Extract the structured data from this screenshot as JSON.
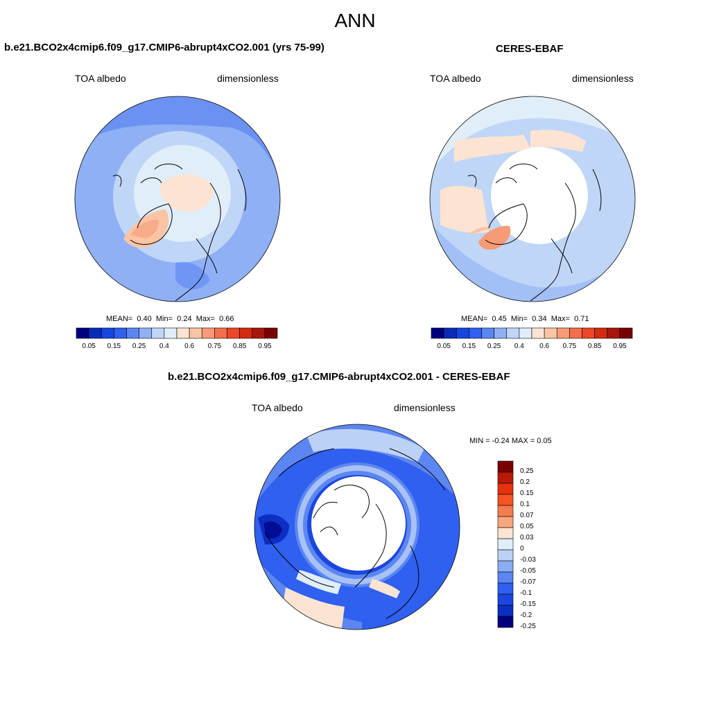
{
  "figure": {
    "title": "ANN"
  },
  "panels": [
    {
      "title": "b.e21.BCO2x4cmip6.f09_g17.CMIP6-abrupt4xCO2.001 (yrs 75-99)",
      "variable": "TOA albedo",
      "units": "dimensionless",
      "mean_label": "MEAN=",
      "mean": "0.40",
      "min_label": "Min=",
      "min": "0.24",
      "max_label": "Max=",
      "max": "0.66",
      "colorbar_ticks": [
        "0.05",
        "0.15",
        "0.25",
        "0.4",
        "0.6",
        "0.75",
        "0.85",
        "0.95"
      ]
    },
    {
      "title": "CERES-EBAF",
      "variable": "TOA albedo",
      "units": "dimensionless",
      "mean_label": "MEAN=",
      "mean": "0.45",
      "min_label": "Min=",
      "min": "0.34",
      "max_label": "Max=",
      "max": "0.71",
      "colorbar_ticks": [
        "0.05",
        "0.15",
        "0.25",
        "0.4",
        "0.6",
        "0.75",
        "0.85",
        "0.95"
      ]
    },
    {
      "title": "b.e21.BCO2x4cmip6.f09_g17.CMIP6-abrupt4xCO2.001 - CERES-EBAF",
      "variable": "TOA albedo",
      "units": "dimensionless",
      "minmax_text": "MIN =  -0.24 MAX =   0.05",
      "colorbar_ticks": [
        "0.25",
        "0.2",
        "0.15",
        "0.1",
        "0.07",
        "0.05",
        "0.03",
        "0",
        "-0.03",
        "-0.05",
        "-0.07",
        "-0.1",
        "-0.15",
        "-0.2",
        "-0.25"
      ]
    }
  ],
  "colors": {
    "absolute_scale": [
      "#00007f",
      "#0a2bb8",
      "#1546e0",
      "#2f60f0",
      "#5b86f2",
      "#8fb0f5",
      "#c0d6f7",
      "#e0eefa",
      "#fde4d2",
      "#fbc4a4",
      "#f79b76",
      "#f36e4c",
      "#ee4626",
      "#d22b10",
      "#a8150a",
      "#7a0000"
    ],
    "difference_scale": [
      "#7a0000",
      "#b81a05",
      "#e6320c",
      "#f55522",
      "#f67d4c",
      "#f9a57e",
      "#fde4d2",
      "#e0eefa",
      "#bcd1f6",
      "#8aadf3",
      "#5c86f1",
      "#2f60ef",
      "#1b47e0",
      "#0c2ec2",
      "#00007f"
    ]
  }
}
